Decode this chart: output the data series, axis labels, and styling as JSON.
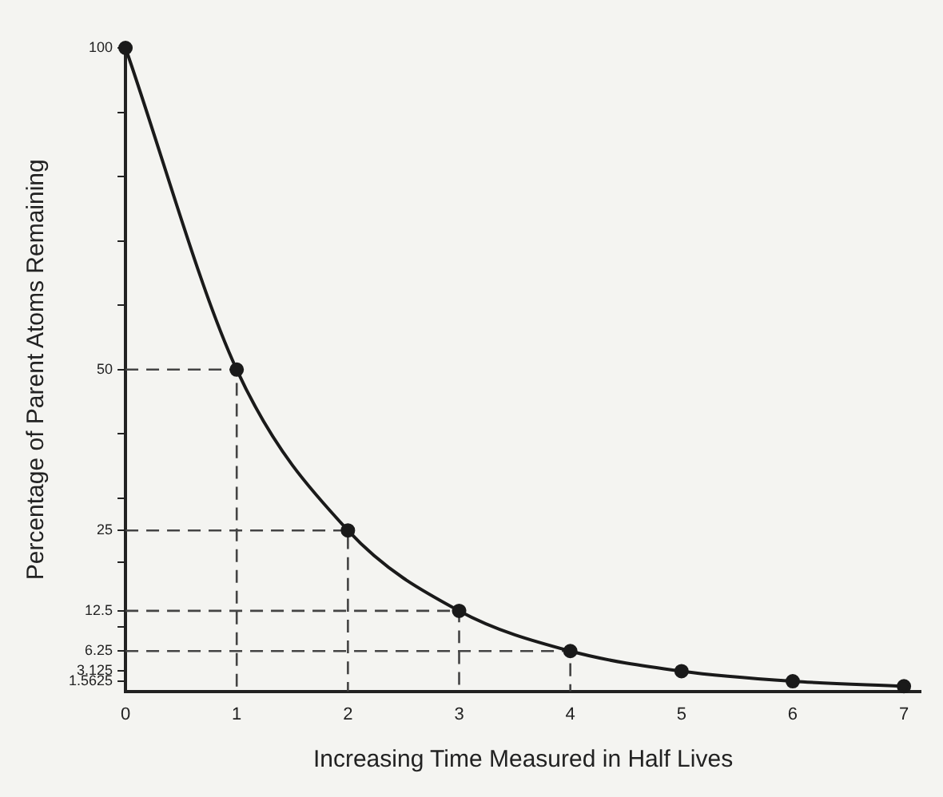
{
  "chart_data": {
    "type": "line",
    "xlabel": "Increasing Time Measured in Half Lives",
    "ylabel": "Percentage of Parent Atoms Remaining",
    "xlim": [
      0,
      7.15
    ],
    "xticks": [
      0,
      1,
      2,
      3,
      4,
      5,
      6,
      7
    ],
    "ylim": [
      0,
      100
    ],
    "yticks": [
      {
        "value": 1.5625,
        "label": "1.5625"
      },
      {
        "value": 3.125,
        "label": "3.125"
      },
      {
        "value": 6.25,
        "label": "6.25"
      },
      {
        "value": 10,
        "label": null
      },
      {
        "value": 12.5,
        "label": "12.5"
      },
      {
        "value": 20,
        "label": null
      },
      {
        "value": 25,
        "label": "25"
      },
      {
        "value": 30,
        "label": null
      },
      {
        "value": 40,
        "label": null
      },
      {
        "value": 50,
        "label": "50"
      },
      {
        "value": 60,
        "label": null
      },
      {
        "value": 70,
        "label": null
      },
      {
        "value": 80,
        "label": null
      },
      {
        "value": 90,
        "label": null
      },
      {
        "value": 100,
        "label": "100"
      }
    ],
    "grid": false,
    "legend": false,
    "marker": "circle",
    "series": [
      {
        "x": [
          0,
          1,
          2,
          3,
          4,
          5,
          6,
          7
        ],
        "values": [
          100,
          50,
          25,
          12.5,
          6.25,
          3.125,
          1.5625,
          0.78
        ],
        "color": "#1a1a1a"
      },
      {
        "type": "line",
        "x": [
          0,
          1,
          1
        ],
        "values": [
          50,
          50,
          0
        ],
        "color": "#444444",
        "line_style": "dashed",
        "marker": "none"
      },
      {
        "type": "line",
        "x": [
          0,
          2,
          2
        ],
        "values": [
          25,
          25,
          0
        ],
        "color": "#444444",
        "line_style": "dashed",
        "marker": "none"
      },
      {
        "type": "line",
        "x": [
          0,
          3,
          3
        ],
        "values": [
          12.5,
          12.5,
          0
        ],
        "color": "#444444",
        "line_style": "dashed",
        "marker": "none"
      },
      {
        "type": "line",
        "x": [
          0,
          4,
          4
        ],
        "values": [
          6.25,
          6.25,
          0
        ],
        "color": "#444444",
        "line_style": "dashed",
        "marker": "none"
      }
    ]
  }
}
